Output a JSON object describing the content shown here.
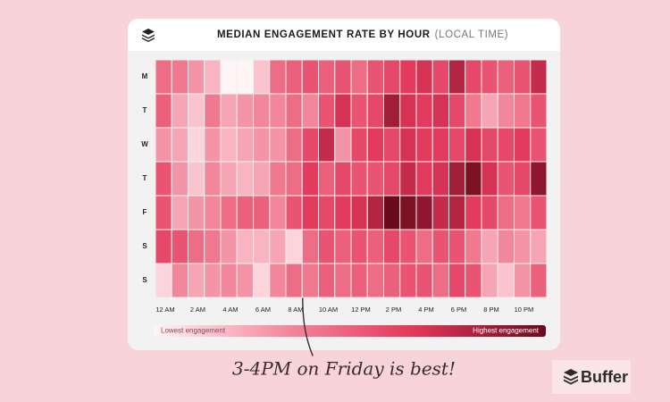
{
  "chart_data": {
    "type": "heatmap",
    "title": "MEDIAN ENGAGEMENT RATE BY HOUR",
    "subtitle": "(LOCAL TIME)",
    "rows": [
      "M",
      "T",
      "W",
      "T",
      "F",
      "S",
      "S"
    ],
    "categories": [
      "12 AM",
      null,
      "2 AM",
      null,
      "4 AM",
      null,
      "6 AM",
      null,
      "8 AM",
      null,
      "10 AM",
      null,
      "12 PM",
      null,
      "2 PM",
      null,
      "4 PM",
      null,
      "6 PM",
      null,
      "8 PM",
      null,
      "10 PM",
      null
    ],
    "values": [
      [
        45,
        40,
        30,
        20,
        0,
        0,
        15,
        45,
        50,
        55,
        50,
        55,
        45,
        55,
        60,
        65,
        70,
        60,
        80,
        60,
        55,
        50,
        55,
        75
      ],
      [
        50,
        25,
        15,
        40,
        25,
        30,
        35,
        35,
        45,
        35,
        55,
        70,
        55,
        60,
        85,
        70,
        65,
        70,
        60,
        40,
        25,
        35,
        40,
        55
      ],
      [
        30,
        25,
        10,
        30,
        20,
        25,
        30,
        30,
        45,
        60,
        75,
        30,
        60,
        65,
        60,
        70,
        65,
        65,
        60,
        70,
        60,
        60,
        65,
        55
      ],
      [
        55,
        30,
        15,
        35,
        25,
        20,
        25,
        40,
        45,
        65,
        50,
        60,
        55,
        55,
        60,
        75,
        65,
        70,
        85,
        95,
        70,
        55,
        60,
        90
      ],
      [
        55,
        25,
        30,
        35,
        45,
        50,
        50,
        35,
        55,
        65,
        60,
        65,
        70,
        80,
        100,
        95,
        90,
        75,
        80,
        65,
        60,
        45,
        40,
        55
      ],
      [
        60,
        55,
        45,
        40,
        30,
        20,
        20,
        25,
        10,
        45,
        55,
        50,
        55,
        50,
        60,
        55,
        45,
        55,
        55,
        40,
        25,
        35,
        30,
        25
      ],
      [
        10,
        35,
        25,
        30,
        35,
        30,
        10,
        35,
        45,
        40,
        50,
        45,
        50,
        45,
        50,
        55,
        55,
        45,
        60,
        55,
        25,
        15,
        30,
        50
      ]
    ],
    "colors": [
      "#fff4f6",
      "#f38a9e",
      "#e2375a",
      "#6a0a1c"
    ],
    "legend_low": "Lowest engagement",
    "legend_high": "Highest engagement",
    "annotation": "3-4PM on Friday is best!",
    "brand": "Buffer"
  }
}
